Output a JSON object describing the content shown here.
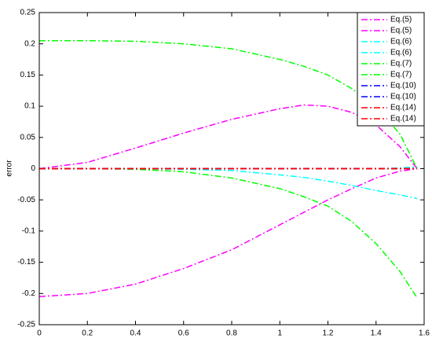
{
  "chart_data": {
    "type": "line",
    "ylabel": "error",
    "x": [
      0,
      0.2,
      0.4,
      0.6,
      0.8,
      1.0,
      1.1,
      1.2,
      1.3,
      1.4,
      1.5,
      1.5708
    ],
    "series": [
      {
        "name": "Eq.(5)",
        "color": "#ff00ff",
        "values": [
          0,
          0.01,
          0.033,
          0.057,
          0.079,
          0.096,
          0.102,
          0.1,
          0.09,
          0.07,
          0.035,
          0
        ]
      },
      {
        "name": "Eq.(5)",
        "color": "#ff00ff",
        "values": [
          -0.205,
          -0.2,
          -0.185,
          -0.16,
          -0.13,
          -0.09,
          -0.07,
          -0.05,
          -0.032,
          -0.015,
          -0.004,
          0
        ]
      },
      {
        "name": "Eq.(6)",
        "color": "#00ffff",
        "values": [
          0,
          0,
          0,
          0,
          0,
          0,
          0,
          0,
          0,
          0,
          0.001,
          0.003
        ]
      },
      {
        "name": "Eq.(6)",
        "color": "#00ffff",
        "values": [
          0,
          0,
          0,
          -0.001,
          -0.003,
          -0.01,
          -0.014,
          -0.02,
          -0.027,
          -0.035,
          -0.042,
          -0.048
        ]
      },
      {
        "name": "Eq.(7)",
        "color": "#00ff00",
        "values": [
          0.205,
          0.205,
          0.204,
          0.2,
          0.192,
          0.175,
          0.164,
          0.15,
          0.128,
          0.1,
          0.055,
          0
        ]
      },
      {
        "name": "Eq.(7)",
        "color": "#00ff00",
        "values": [
          0,
          0,
          -0.001,
          -0.005,
          -0.015,
          -0.032,
          -0.045,
          -0.06,
          -0.085,
          -0.12,
          -0.165,
          -0.207
        ]
      },
      {
        "name": "Eq.(10)",
        "color": "#0000ff",
        "values": [
          0,
          0,
          0,
          0,
          0,
          0,
          0,
          0,
          0,
          0,
          0,
          0
        ]
      },
      {
        "name": "Eq.(10)",
        "color": "#0000ff",
        "values": [
          0,
          0,
          0,
          0,
          0,
          0,
          0,
          0,
          0,
          0,
          0,
          0
        ]
      },
      {
        "name": "Eq.(14)",
        "color": "#ff0000",
        "values": [
          0,
          0,
          0,
          0,
          0,
          0,
          0,
          0,
          0,
          0,
          0,
          0
        ]
      },
      {
        "name": "Eq.(14)",
        "color": "#ff0000",
        "values": [
          0,
          0,
          0,
          0,
          0,
          0,
          0,
          0,
          0,
          0,
          0,
          0
        ]
      }
    ],
    "xlim": [
      0,
      1.6
    ],
    "xticks": [
      0,
      0.2,
      0.4,
      0.6,
      0.8,
      1,
      1.2,
      1.4,
      1.6
    ],
    "ylim": [
      -0.25,
      0.25
    ],
    "yticks": [
      -0.25,
      -0.2,
      -0.15,
      -0.1,
      -0.05,
      0,
      0.05,
      0.1,
      0.15,
      0.2,
      0.25
    ],
    "legend": "top-right"
  }
}
